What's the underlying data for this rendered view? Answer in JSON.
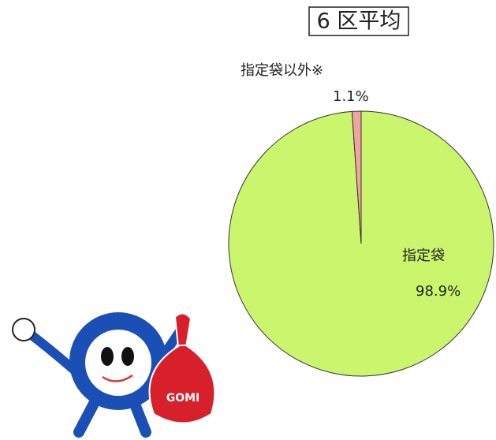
{
  "chart_data": {
    "type": "pie",
    "title": "6 区平均",
    "categories": [
      "指定袋",
      "指定袋以外※"
    ],
    "values": [
      98.9,
      1.1
    ],
    "value_labels": [
      "98.9%",
      "1.1%"
    ],
    "colors": [
      "#ccf56e",
      "#f4a3a3"
    ]
  },
  "mascot": {
    "bag_label": "GOMI"
  }
}
